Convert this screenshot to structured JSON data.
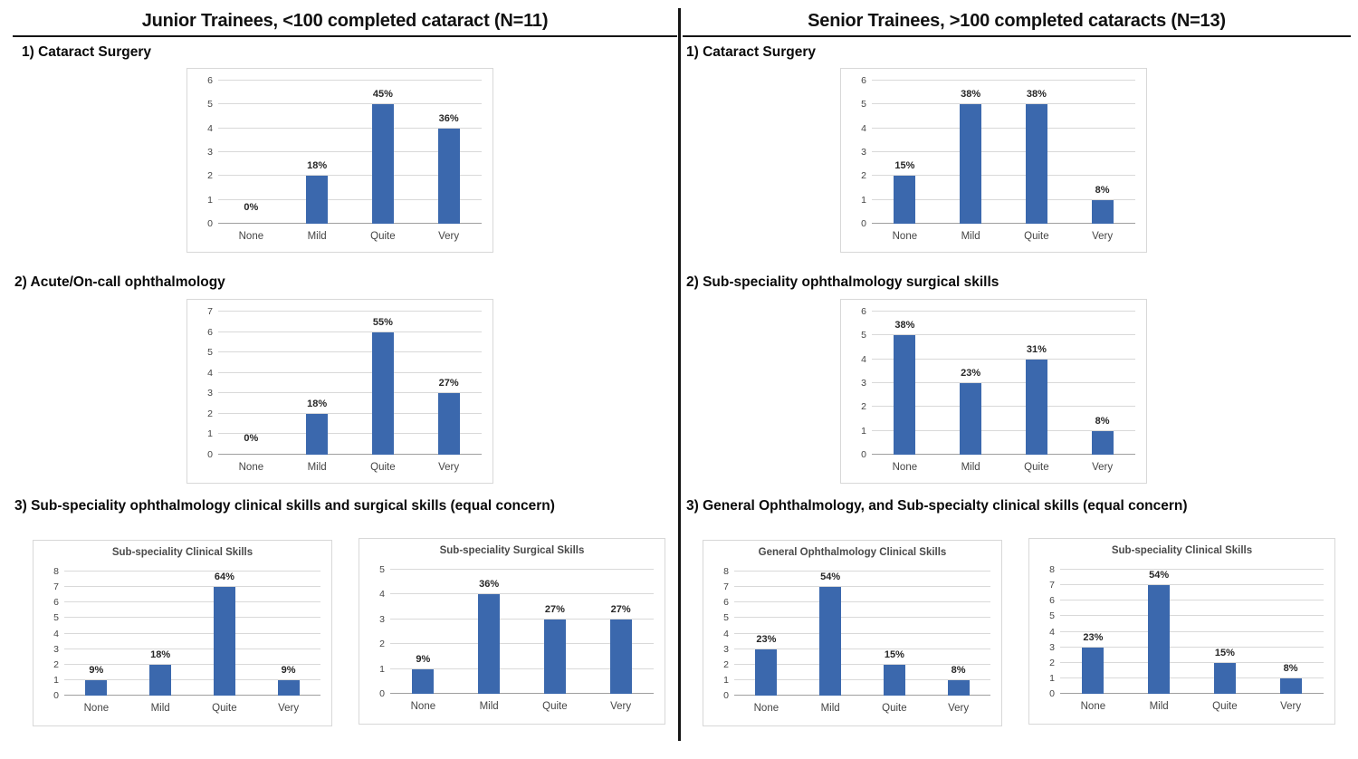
{
  "columns": {
    "left": {
      "title": "Junior Trainees, <100 completed cataract (N=11)",
      "sections": [
        {
          "label": "1) Cataract Surgery"
        },
        {
          "label": "2) Acute/On-call ophthalmology"
        },
        {
          "label": "3) Sub-speciality ophthalmology clinical skills and surgical skills (equal concern)"
        }
      ]
    },
    "right": {
      "title": "Senior Trainees, >100 completed cataracts (N=13)",
      "sections": [
        {
          "label": "1) Cataract Surgery"
        },
        {
          "label": "2) Sub-speciality ophthalmology surgical skills"
        },
        {
          "label": "3) General Ophthalmology, and Sub-specialty clinical skills (equal concern)"
        }
      ]
    }
  },
  "colors": {
    "bar": "#3B68AD",
    "gridline": "#d9d9d9",
    "baseline": "#9f9f9f",
    "divider": "#151515"
  },
  "chart_data": [
    {
      "id": "junior-cataract-surgery",
      "type": "bar",
      "title": "",
      "categories": [
        "None",
        "Mild",
        "Quite",
        "Very"
      ],
      "values": [
        0,
        2,
        5,
        4
      ],
      "value_labels": [
        "0%",
        "18%",
        "45%",
        "36%"
      ],
      "ylim": [
        0,
        6
      ],
      "ytick_step": 1,
      "grid": true,
      "legend": false
    },
    {
      "id": "junior-acute-oncall-ophthalmology",
      "type": "bar",
      "title": "",
      "categories": [
        "None",
        "Mild",
        "Quite",
        "Very"
      ],
      "values": [
        0,
        2,
        6,
        3
      ],
      "value_labels": [
        "0%",
        "18%",
        "55%",
        "27%"
      ],
      "ylim": [
        0,
        7
      ],
      "ytick_step": 1,
      "grid": true,
      "legend": false
    },
    {
      "id": "junior-subspeciality-clinical-skills",
      "type": "bar",
      "title": "Sub-speciality Clinical Skills",
      "categories": [
        "None",
        "Mild",
        "Quite",
        "Very"
      ],
      "values": [
        1,
        2,
        7,
        1
      ],
      "value_labels": [
        "9%",
        "18%",
        "64%",
        "9%"
      ],
      "ylim": [
        0,
        8
      ],
      "ytick_step": 1,
      "grid": true,
      "legend": false
    },
    {
      "id": "junior-subspeciality-surgical-skills",
      "type": "bar",
      "title": "Sub-speciality Surgical Skills",
      "categories": [
        "None",
        "Mild",
        "Quite",
        "Very"
      ],
      "values": [
        1,
        4,
        3,
        3
      ],
      "value_labels": [
        "9%",
        "36%",
        "27%",
        "27%"
      ],
      "ylim": [
        0,
        5
      ],
      "ytick_step": 1,
      "grid": true,
      "legend": false
    },
    {
      "id": "senior-cataract-surgery",
      "type": "bar",
      "title": "",
      "categories": [
        "None",
        "Mild",
        "Quite",
        "Very"
      ],
      "values": [
        2,
        5,
        5,
        1
      ],
      "value_labels": [
        "15%",
        "38%",
        "38%",
        "8%"
      ],
      "ylim": [
        0,
        6
      ],
      "ytick_step": 1,
      "grid": true,
      "legend": false
    },
    {
      "id": "senior-subspeciality-surgical-skills",
      "type": "bar",
      "title": "",
      "categories": [
        "None",
        "Mild",
        "Quite",
        "Very"
      ],
      "values": [
        5,
        3,
        4,
        1
      ],
      "value_labels": [
        "38%",
        "23%",
        "31%",
        "8%"
      ],
      "ylim": [
        0,
        6
      ],
      "ytick_step": 1,
      "grid": true,
      "legend": false
    },
    {
      "id": "senior-general-ophthalmology-clinical-skills",
      "type": "bar",
      "title": "General Ophthalmology Clinical Skills",
      "categories": [
        "None",
        "Mild",
        "Quite",
        "Very"
      ],
      "values": [
        3,
        7,
        2,
        1
      ],
      "value_labels": [
        "23%",
        "54%",
        "15%",
        "8%"
      ],
      "ylim": [
        0,
        8
      ],
      "ytick_step": 1,
      "grid": true,
      "legend": false
    },
    {
      "id": "senior-subspeciality-clinical-skills",
      "type": "bar",
      "title": "Sub-speciality Clinical Skills",
      "categories": [
        "None",
        "Mild",
        "Quite",
        "Very"
      ],
      "values": [
        3,
        7,
        2,
        1
      ],
      "value_labels": [
        "23%",
        "54%",
        "15%",
        "8%"
      ],
      "ylim": [
        0,
        8
      ],
      "ytick_step": 1,
      "grid": true,
      "legend": false
    }
  ]
}
